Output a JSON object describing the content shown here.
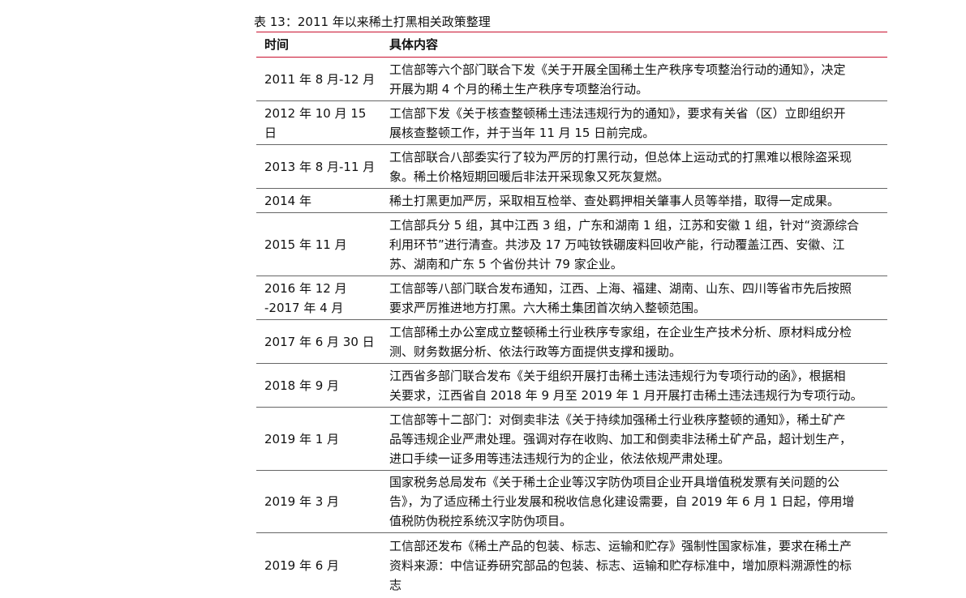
{
  "caption": "表 13：2011 年以来稀土打黑相关政策整理",
  "headers": {
    "time": "时间",
    "content": "具体内容"
  },
  "rows": [
    {
      "time": [
        "2011 年 8 月-12 月"
      ],
      "content": [
        "工信部等六个部门联合下发《关于开展全国稀土生产秩序专项整治行动的通知》，决定",
        "开展为期 4 个月的稀土生产秩序专项整治行动。"
      ]
    },
    {
      "time": [
        "2012 年 10 月 15",
        "日"
      ],
      "content": [
        "工信部下发《关于核查整顿稀土违法违规行为的通知》，要求有关省（区）立即组织开",
        "展核查整顿工作，并于当年 11 月 15 日前完成。"
      ]
    },
    {
      "time": [
        "2013 年 8 月-11 月"
      ],
      "content": [
        "工信部联合八部委实行了较为严厉的打黑行动，但总体上运动式的打黑难以根除盗采现",
        "象。稀土价格短期回暖后非法开采现象又死灰复燃。"
      ]
    },
    {
      "time": [
        "2014 年"
      ],
      "content": [
        "稀土打黑更加严厉，采取相互检举、查处羁押相关肇事人员等举措，取得一定成果。"
      ]
    },
    {
      "time": [
        "2015 年 11 月"
      ],
      "content": [
        "工信部兵分 5 组，其中江西 3 组，广东和湖南 1 组，江苏和安徽 1 组，针对“资源综合",
        "利用环节”进行清查。共涉及 17 万吨钕铁硼废料回收产能，行动覆盖江西、安徽、江",
        "苏、湖南和广东 5 个省份共计 79 家企业。"
      ]
    },
    {
      "time": [
        "2016 年 12 月",
        "-2017 年 4 月"
      ],
      "content": [
        "工信部等八部门联合发布通知，江西、上海、福建、湖南、山东、四川等省市先后按照",
        "要求严厉推进地方打黑。六大稀土集团首次纳入整顿范围。"
      ]
    },
    {
      "time": [
        "2017 年 6 月 30 日"
      ],
      "content": [
        "工信部稀土办公室成立整顿稀土行业秩序专家组，在企业生产技术分析、原材料成分检",
        "测、财务数据分析、依法行政等方面提供支撑和援助。"
      ]
    },
    {
      "time": [
        "2018 年 9 月"
      ],
      "content": [
        "江西省多部门联合发布《关于组织开展打击稀土违法违规行为专项行动的函》，根据相",
        "关要求，江西省自 2018 年 9 月至 2019 年 1 月开展打击稀土违法违规行为专项行动。"
      ]
    },
    {
      "time": [
        "2019 年 1 月"
      ],
      "content": [
        "工信部等十二部门：对倒卖非法《关于持续加强稀土行业秩序整顿的通知》，稀土矿产",
        "品等违规企业严肃处理。强调对存在收购、加工和倒卖非法稀土矿产品，超计划生产，",
        "进口手续一证多用等违法违规行为的企业，依法依规严肃处理。"
      ]
    },
    {
      "time": [
        "2019 年 3 月"
      ],
      "content": [
        "国家税务总局发布《关于稀土企业等汉字防伪项目企业开具增值税发票有关问题的公",
        "告》，为了适应稀土行业发展和税收信息化建设需要，自 2019 年 6 月 1 日起，停用增",
        "值税防伪税控系统汉字防伪项目。"
      ]
    },
    {
      "time": [
        "2019 年 6 月"
      ],
      "content": [
        "工信部还发布《稀土产品的包装、标志、运输和贮存》强制性国家标准，要求在稀土产",
        "资料来源：中信证券研究部品的包装、标志、运输和贮存标准中，增加原料溯源性的标",
        "志"
      ]
    }
  ]
}
